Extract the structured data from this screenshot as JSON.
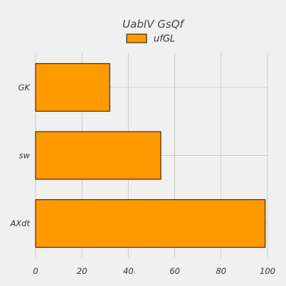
{
  "chart_data": {
    "type": "bar",
    "orientation": "horizontal",
    "title": "UabIV GsQf",
    "xlabel": "",
    "ylabel": "",
    "categories": [
      "GK",
      "sw",
      "AXdt"
    ],
    "series": [
      {
        "name": "ufGL",
        "values": [
          32,
          54,
          99
        ],
        "color": "#ff9900"
      }
    ],
    "xlim": [
      0,
      100
    ],
    "xticks": [
      0,
      20,
      40,
      60,
      80,
      100
    ],
    "grid": true,
    "legend": "top-center"
  }
}
